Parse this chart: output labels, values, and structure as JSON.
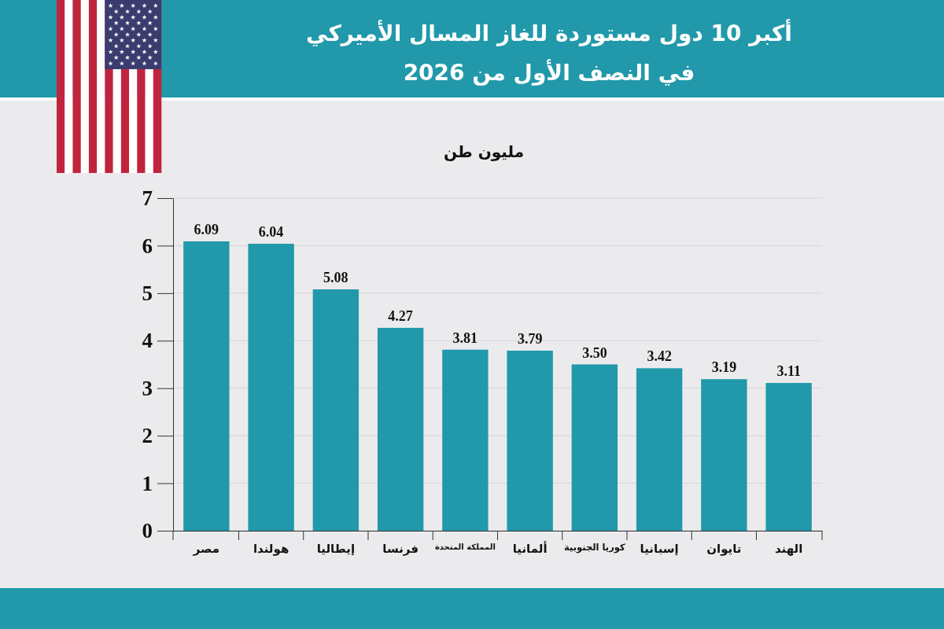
{
  "chart_data": {
    "type": "bar",
    "title": "أكبر 10 دول مستوردة للغاز المسال الأميركي\nفي النصف الأول من 2026",
    "ylabel": "مليون طن",
    "categories": [
      "مصر",
      "هولندا",
      "إيطاليا",
      "فرنسا",
      "المملكة المتحدة",
      "ألمانيا",
      "كوريا الجنوبية",
      "إسبانيا",
      "تايوان",
      "الهند"
    ],
    "values": [
      6.09,
      6.04,
      5.08,
      4.27,
      3.81,
      3.79,
      3.5,
      3.42,
      3.19,
      3.11
    ],
    "value_labels": [
      "6.09",
      "6.04",
      "5.08",
      "4.27",
      "3.81",
      "3.79",
      "3.50",
      "3.42",
      "3.19",
      "3.11"
    ],
    "color": "#2199aa",
    "ylim": [
      0,
      7
    ],
    "yticks": [
      0,
      1,
      2,
      3,
      4,
      5,
      6,
      7
    ],
    "grid": "y"
  }
}
